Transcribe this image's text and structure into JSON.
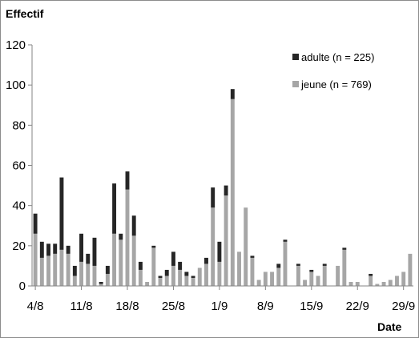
{
  "chart_data": {
    "type": "bar",
    "stacked": true,
    "title": "",
    "ylabel": "Effectif",
    "xlabel": "Date",
    "ylim": [
      0,
      120
    ],
    "yticks": [
      0,
      20,
      40,
      60,
      80,
      100,
      120
    ],
    "grid": false,
    "legend_position": "top-right",
    "x_ticks": [
      {
        "label": "4/8",
        "index": 0
      },
      {
        "label": "11/8",
        "index": 7
      },
      {
        "label": "18/8",
        "index": 14
      },
      {
        "label": "25/8",
        "index": 21
      },
      {
        "label": "1/9",
        "index": 28
      },
      {
        "label": "8/9",
        "index": 35
      },
      {
        "label": "15/9",
        "index": 42
      },
      {
        "label": "22/9",
        "index": 49
      },
      {
        "label": "29/9",
        "index": 56
      }
    ],
    "categories": [
      "4/8",
      "5/8",
      "6/8",
      "7/8",
      "8/8",
      "9/8",
      "10/8",
      "11/8",
      "12/8",
      "13/8",
      "14/8",
      "15/8",
      "16/8",
      "17/8",
      "18/8",
      "19/8",
      "20/8",
      "21/8",
      "22/8",
      "23/8",
      "24/8",
      "25/8",
      "26/8",
      "27/8",
      "28/8",
      "29/8",
      "30/8",
      "31/8",
      "1/9",
      "2/9",
      "3/9",
      "4/9",
      "5/9",
      "6/9",
      "7/9",
      "8/9",
      "9/9",
      "10/9",
      "11/9",
      "12/9",
      "13/9",
      "14/9",
      "15/9",
      "16/9",
      "17/9",
      "18/9",
      "19/9",
      "20/9",
      "21/9",
      "22/9",
      "23/9",
      "24/9",
      "25/9",
      "26/9",
      "27/9",
      "28/9",
      "29/9",
      "30/9"
    ],
    "series": [
      {
        "name": "jeune (n = 769)",
        "color": "#a6a6a6",
        "values": [
          26,
          14,
          15,
          16,
          18,
          16,
          5,
          12,
          11,
          10,
          1,
          6,
          26,
          23,
          48,
          25,
          8,
          2,
          19,
          4,
          5,
          10,
          8,
          5,
          4,
          9,
          11,
          39,
          12,
          45,
          93,
          17,
          39,
          14,
          3,
          7,
          7,
          9,
          22,
          0,
          10,
          3,
          7,
          5,
          10,
          0,
          10,
          18,
          2,
          2,
          0,
          5,
          1,
          2,
          3,
          5,
          7,
          16
        ]
      },
      {
        "name": "adulte (n = 225)",
        "color": "#262626",
        "values": [
          10,
          8,
          6,
          5,
          36,
          4,
          5,
          14,
          5,
          14,
          1,
          4,
          25,
          3,
          9,
          10,
          4,
          0,
          1,
          1,
          3,
          7,
          4,
          2,
          1,
          0,
          3,
          10,
          10,
          5,
          5,
          0,
          0,
          1,
          0,
          0,
          0,
          2,
          1,
          0,
          1,
          0,
          1,
          0,
          1,
          0,
          0,
          1,
          0,
          0,
          0,
          1,
          0,
          0,
          0,
          0,
          0,
          0
        ]
      }
    ]
  }
}
